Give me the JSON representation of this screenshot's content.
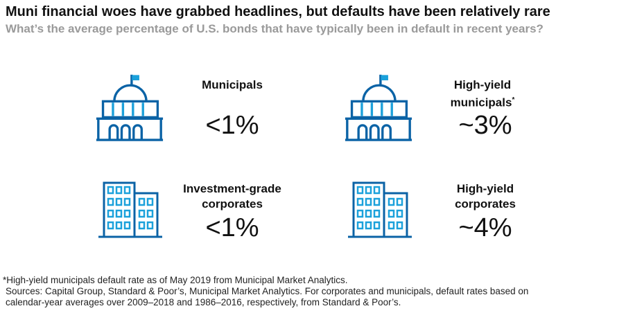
{
  "title": "Muni financial woes have grabbed headlines, but defaults have been relatively rare",
  "subtitle": "What’s the average percentage of U.S. bonds that have typically been in default in recent years?",
  "colors": {
    "dark_blue": "#0b63a6",
    "light_blue": "#1ba1db"
  },
  "items": [
    {
      "icon": "capitol-icon",
      "label": "Municipals",
      "mark": "",
      "value": "<1%"
    },
    {
      "icon": "capitol-icon",
      "label": "High-yield municipals",
      "mark": "*",
      "value": "~3%"
    },
    {
      "icon": "office-building-icon",
      "label": "Investment-grade corporates",
      "mark": "",
      "value": "<1%"
    },
    {
      "icon": "office-building-icon",
      "label": "High-yield corporates",
      "mark": "",
      "value": "~4%"
    }
  ],
  "footnotes": [
    "*High-yield municipals default rate as of May 2019 from Municipal Market Analytics.",
    "Sources: Capital Group, Standard & Poor’s, Municipal Market Analytics. For corporates and municipals, default rates based on",
    "calendar-year averages over 2009–2018 and 1986–2016, respectively, from Standard & Poor’s."
  ]
}
